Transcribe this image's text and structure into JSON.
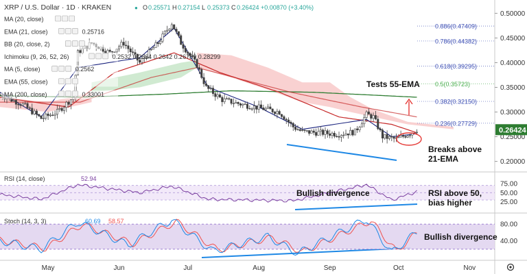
{
  "header": {
    "symbol_line": "XRP / U.S. Dollar · 1D · KRAKEN",
    "ohlc": [
      {
        "label": "O",
        "value": "0.25571"
      },
      {
        "label": "H",
        "value": "0.27154"
      },
      {
        "label": "L",
        "value": "0.25373"
      },
      {
        "label": "C",
        "value": "0.26424"
      }
    ],
    "change": "+0.00870 (+3.40%)"
  },
  "indicators": [
    {
      "label": "MA (20, close)",
      "value": ""
    },
    {
      "label": "EMA (21, close)",
      "value": "0.25716"
    },
    {
      "label": "BB (20, close, 2)",
      "value": ""
    },
    {
      "label": "Ichimoku (9, 26, 52, 26)",
      "value": "0.2532 0.2664 0.2642 0.26759 0.28299"
    },
    {
      "label": "MA (5, close)",
      "value": "0.2562"
    },
    {
      "label": "EMA (55, close)",
      "value": ""
    },
    {
      "label": "MA (200, close)",
      "value": "0.33001"
    }
  ],
  "fib_levels": [
    {
      "label": "0.886(0.47409)",
      "price": 0.47409,
      "color": "#3f51b5"
    },
    {
      "label": "0.786(0.44382)",
      "price": 0.44382,
      "color": "#3f51b5"
    },
    {
      "label": "0.618(0.39295)",
      "price": 0.39295,
      "color": "#3f51b5"
    },
    {
      "label": "0.5(0.35723)",
      "price": 0.35723,
      "color": "#4caf50"
    },
    {
      "label": "0.382(0.32150)",
      "price": 0.3215,
      "color": "#3f51b5"
    },
    {
      "label": "0.236(0.27729)",
      "price": 0.27729,
      "color": "#3f51b5"
    }
  ],
  "annotations": {
    "tests_ema": "Tests 55-EMA",
    "breaks_line1": "Breaks above",
    "breaks_line2": "21-EMA",
    "rsi_div": "Bullish divergence",
    "rsi_bias1": "RSI above 50,",
    "rsi_bias2": "bias higher",
    "stoch_div": "Bullish divergence"
  },
  "current_price": "0.26424",
  "rsi_panel": {
    "label": "RSI (14, close)",
    "value": "52.94",
    "ticks": [
      "75.00",
      "50.00",
      "25.00"
    ]
  },
  "stoch_panel": {
    "label": "Stoch (14, 3, 3)",
    "values": [
      "60.69",
      "58.57"
    ],
    "ticks": [
      "80.00",
      "40.00"
    ]
  },
  "price_axis_ticks": [
    "0.50000",
    "0.45000",
    "0.40000",
    "0.35000",
    "0.30000",
    "0.25000",
    "0.20000"
  ],
  "time_axis": [
    "May",
    "Jun",
    "Jul",
    "Aug",
    "Sep",
    "Oct",
    "Nov"
  ],
  "colors": {
    "up": "#26a69a",
    "down": "#ef5350",
    "candle": "#404040",
    "ema21": "#c62828",
    "ema55": "#2e7d32",
    "ma5": "#1a237e",
    "cloud_bear": "#f8c9c9",
    "cloud_bull": "#c8e6c9",
    "trend": "#1e88e5",
    "rsi": "#7b3fa0",
    "stoch_k": "#1e88e5",
    "stoch_d": "#ef5350"
  },
  "chart_data": {
    "type": "candlestick",
    "title": "XRP / U.S. Dollar · 1D · KRAKEN",
    "ylim": [
      0.18,
      0.52
    ],
    "x_range": [
      "2019-04-10",
      "2019-11-12"
    ],
    "tick_dates": [
      "2019-05-01",
      "2019-06-01",
      "2019-07-01",
      "2019-08-01",
      "2019-09-01",
      "2019-10-01",
      "2019-11-01"
    ],
    "close_keypoints": [
      [
        "2019-04-10",
        0.335
      ],
      [
        "2019-04-20",
        0.315
      ],
      [
        "2019-04-28",
        0.287
      ],
      [
        "2019-05-05",
        0.3
      ],
      [
        "2019-05-12",
        0.33
      ],
      [
        "2019-05-14",
        0.42
      ],
      [
        "2019-05-20",
        0.44
      ],
      [
        "2019-05-28",
        0.42
      ],
      [
        "2019-06-03",
        0.44
      ],
      [
        "2019-06-10",
        0.4
      ],
      [
        "2019-06-18",
        0.44
      ],
      [
        "2019-06-24",
        0.48
      ],
      [
        "2019-06-28",
        0.44
      ],
      [
        "2019-07-05",
        0.395
      ],
      [
        "2019-07-09",
        0.35
      ],
      [
        "2019-07-16",
        0.325
      ],
      [
        "2019-07-25",
        0.315
      ],
      [
        "2019-08-05",
        0.305
      ],
      [
        "2019-08-10",
        0.3
      ],
      [
        "2019-08-16",
        0.27
      ],
      [
        "2019-08-20",
        0.26
      ],
      [
        "2019-08-28",
        0.258
      ],
      [
        "2019-09-05",
        0.255
      ],
      [
        "2019-09-12",
        0.26
      ],
      [
        "2019-09-17",
        0.295
      ],
      [
        "2019-09-20",
        0.29
      ],
      [
        "2019-09-24",
        0.25
      ],
      [
        "2019-09-30",
        0.245
      ],
      [
        "2019-10-05",
        0.255
      ],
      [
        "2019-10-09",
        0.264
      ]
    ],
    "ema21_keypoints": [
      [
        "2019-04-10",
        0.33
      ],
      [
        "2019-05-10",
        0.31
      ],
      [
        "2019-05-30",
        0.38
      ],
      [
        "2019-06-25",
        0.42
      ],
      [
        "2019-07-15",
        0.38
      ],
      [
        "2019-08-10",
        0.34
      ],
      [
        "2019-09-05",
        0.29
      ],
      [
        "2019-09-28",
        0.275
      ],
      [
        "2019-10-09",
        0.258
      ]
    ],
    "ema55_keypoints": [
      [
        "2019-04-10",
        0.32
      ],
      [
        "2019-05-15",
        0.32
      ],
      [
        "2019-06-15",
        0.37
      ],
      [
        "2019-07-05",
        0.39
      ],
      [
        "2019-08-15",
        0.34
      ],
      [
        "2019-09-15",
        0.31
      ],
      [
        "2019-10-09",
        0.29
      ]
    ],
    "ma200_keypoints": [
      [
        "2019-04-10",
        0.333
      ],
      [
        "2019-05-15",
        0.33
      ],
      [
        "2019-06-20",
        0.336
      ],
      [
        "2019-07-20",
        0.343
      ],
      [
        "2019-08-25",
        0.34
      ],
      [
        "2019-10-09",
        0.33
      ]
    ],
    "ma5_keypoints": [
      [
        "2019-04-10",
        0.34
      ],
      [
        "2019-04-28",
        0.29
      ],
      [
        "2019-05-14",
        0.39
      ],
      [
        "2019-06-10",
        0.41
      ],
      [
        "2019-06-25",
        0.47
      ],
      [
        "2019-07-10",
        0.35
      ],
      [
        "2019-08-01",
        0.31
      ],
      [
        "2019-08-20",
        0.265
      ],
      [
        "2019-09-17",
        0.285
      ],
      [
        "2019-09-28",
        0.25
      ],
      [
        "2019-10-09",
        0.256
      ]
    ],
    "rsi_keypoints": [
      [
        "2019-04-10",
        45
      ],
      [
        "2019-04-28",
        32
      ],
      [
        "2019-05-14",
        72
      ],
      [
        "2019-06-10",
        50
      ],
      [
        "2019-06-24",
        68
      ],
      [
        "2019-07-10",
        32
      ],
      [
        "2019-08-16",
        28
      ],
      [
        "2019-09-17",
        72
      ],
      [
        "2019-09-28",
        30
      ],
      [
        "2019-10-09",
        53
      ]
    ],
    "stoch_k_keypoints": [
      [
        "2019-04-10",
        40
      ],
      [
        "2019-04-28",
        20
      ],
      [
        "2019-05-14",
        85
      ],
      [
        "2019-06-05",
        30
      ],
      [
        "2019-06-24",
        90
      ],
      [
        "2019-07-12",
        15
      ],
      [
        "2019-08-05",
        50
      ],
      [
        "2019-08-18",
        10
      ],
      [
        "2019-09-17",
        92
      ],
      [
        "2019-09-28",
        12
      ],
      [
        "2019-10-09",
        61
      ]
    ],
    "stoch_d_keypoints": [
      [
        "2019-04-10",
        42
      ],
      [
        "2019-04-30",
        22
      ],
      [
        "2019-05-16",
        80
      ],
      [
        "2019-06-07",
        33
      ],
      [
        "2019-06-26",
        86
      ],
      [
        "2019-07-14",
        18
      ],
      [
        "2019-08-07",
        48
      ],
      [
        "2019-08-20",
        13
      ],
      [
        "2019-09-19",
        88
      ],
      [
        "2019-09-30",
        15
      ],
      [
        "2019-10-09",
        58.57
      ]
    ],
    "price_trend_line": [
      [
        "2019-08-16",
        0.238
      ],
      [
        "2019-09-24",
        0.207
      ]
    ],
    "rsi_trend_line": [
      [
        "2019-08-16",
        29
      ],
      [
        "2019-10-09",
        34
      ]
    ],
    "stoch_trend_line": [
      [
        "2019-07-01",
        5
      ],
      [
        "2019-10-02",
        25
      ]
    ]
  }
}
